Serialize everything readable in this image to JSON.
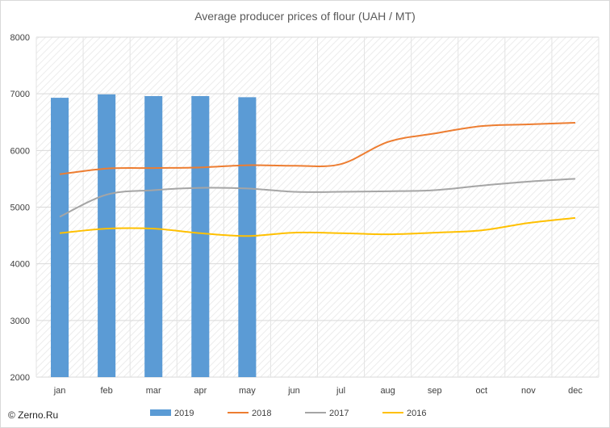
{
  "chart_data": {
    "type": "bar+line",
    "title": "Average producer prices of flour (UAH / MT)",
    "categories": [
      "jan",
      "feb",
      "mar",
      "apr",
      "may",
      "jun",
      "jul",
      "aug",
      "sep",
      "oct",
      "nov",
      "dec"
    ],
    "ylim": [
      2000,
      8000
    ],
    "yticks": [
      "2000",
      "3000",
      "4000",
      "5000",
      "6000",
      "7000",
      "8000"
    ],
    "grid": true,
    "legend_position": "bottom",
    "series": [
      {
        "name": "2019",
        "kind": "bar",
        "color": "#5B9BD5",
        "values": [
          6930,
          6990,
          6960,
          6960,
          6940,
          null,
          null,
          null,
          null,
          null,
          null,
          null
        ]
      },
      {
        "name": "2018",
        "kind": "line",
        "color": "#ED7D31",
        "values": [
          5580,
          5680,
          5690,
          5700,
          5740,
          5730,
          5760,
          6150,
          6300,
          6430,
          6460,
          6490
        ]
      },
      {
        "name": "2017",
        "kind": "line",
        "color": "#A5A5A5",
        "values": [
          4830,
          5220,
          5300,
          5340,
          5330,
          5270,
          5270,
          5280,
          5300,
          5380,
          5450,
          5500
        ]
      },
      {
        "name": "2016",
        "kind": "line",
        "color": "#FFC000",
        "values": [
          4540,
          4620,
          4620,
          4540,
          4490,
          4550,
          4540,
          4520,
          4550,
          4590,
          4720,
          4810
        ]
      }
    ]
  },
  "credit": "© Zerno.Ru"
}
